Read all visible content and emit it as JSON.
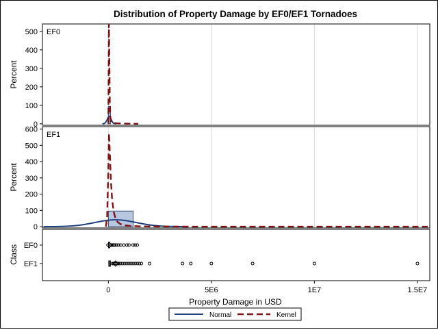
{
  "colors": {
    "normal": "#1f3f7f",
    "kernel": "#7f1212",
    "bar_fill": "#b7c7df",
    "bar_stroke": "#2b3f66",
    "grid": "#d8d8d8",
    "frame": "#000000"
  },
  "chart_data": {
    "type": "histogram",
    "title": "Distribution of Property Damage by EF0/EF1 Tornadoes",
    "xlabel": "Property Damage in USD",
    "x_ticks": [
      0,
      5000000,
      10000000,
      15000000
    ],
    "x_tick_labels": [
      "0",
      "5E6",
      "1E7",
      "1.5E7"
    ],
    "xlim": [
      -3200000,
      15600000
    ],
    "grid": "vertical",
    "legend": {
      "position": "bottom",
      "entries": [
        {
          "label": "Normal",
          "style": "solid",
          "color_key": "normal"
        },
        {
          "label": "Kernel",
          "style": "dashed",
          "color_key": "kernel"
        }
      ]
    },
    "panels": [
      {
        "label": "EF0",
        "ylabel": "Percent",
        "ylim": [
          -8,
          540
        ],
        "y_ticks": [
          0,
          100,
          200,
          300,
          400,
          500
        ],
        "histogram": [
          {
            "x0": 0,
            "x1": 100000,
            "percent": 94
          }
        ],
        "normal_curve": {
          "mean": 40000,
          "sd": 95000,
          "peak": 40
        },
        "kernel_curve": [
          [
            0,
            0
          ],
          [
            10000,
            200
          ],
          [
            25000,
            540
          ],
          [
            45000,
            380
          ],
          [
            70000,
            120
          ],
          [
            100000,
            30
          ],
          [
            150000,
            10
          ],
          [
            250000,
            6
          ],
          [
            400000,
            3
          ],
          [
            700000,
            1
          ],
          [
            1000000,
            0.5
          ],
          [
            1450000,
            0
          ]
        ]
      },
      {
        "label": "EF1",
        "ylabel": "Percent",
        "ylim": [
          -8,
          615
        ],
        "y_ticks": [
          0,
          100,
          200,
          300,
          400,
          500,
          600
        ],
        "histogram": [
          {
            "x0": 0,
            "x1": 1200000,
            "percent": 96
          }
        ],
        "normal_curve": {
          "mean": 350000,
          "sd": 1000000,
          "peak": 42
        },
        "kernel_curve": [
          [
            -120000,
            0
          ],
          [
            -60000,
            60
          ],
          [
            0,
            360
          ],
          [
            30000,
            575
          ],
          [
            70000,
            460
          ],
          [
            120000,
            290
          ],
          [
            180000,
            170
          ],
          [
            260000,
            90
          ],
          [
            350000,
            50
          ],
          [
            450000,
            28
          ],
          [
            600000,
            15
          ],
          [
            800000,
            8
          ],
          [
            1100000,
            4
          ],
          [
            1500000,
            2
          ],
          [
            2500000,
            0.8
          ],
          [
            4000000,
            0.3
          ],
          [
            6000000,
            0.1
          ],
          [
            9000000,
            0.05
          ],
          [
            12000000,
            0.02
          ],
          [
            15500000,
            0
          ]
        ]
      }
    ],
    "box_panel": {
      "ylabel": "Class",
      "categories": [
        "EF0",
        "EF1"
      ],
      "boxes": [
        {
          "category": "EF0",
          "q1": 5000,
          "median": 15000,
          "q3": 30000,
          "mean": 40000,
          "outliers": [
            100000,
            150000,
            200000,
            260000,
            320000,
            400000,
            500000,
            600000,
            750000,
            900000,
            1000000,
            1200000,
            1300000,
            1400000
          ]
        },
        {
          "category": "EF1",
          "q1": 20000,
          "median": 50000,
          "q3": 100000,
          "mean": 350000,
          "outliers": [
            200000,
            260000,
            320000,
            380000,
            450000,
            520000,
            600000,
            700000,
            800000,
            900000,
            1000000,
            1100000,
            1200000,
            1300000,
            1400000,
            1500000,
            1600000,
            2000000,
            3600000,
            4000000,
            5000000,
            7000000,
            10000000,
            15000000
          ]
        }
      ]
    }
  }
}
